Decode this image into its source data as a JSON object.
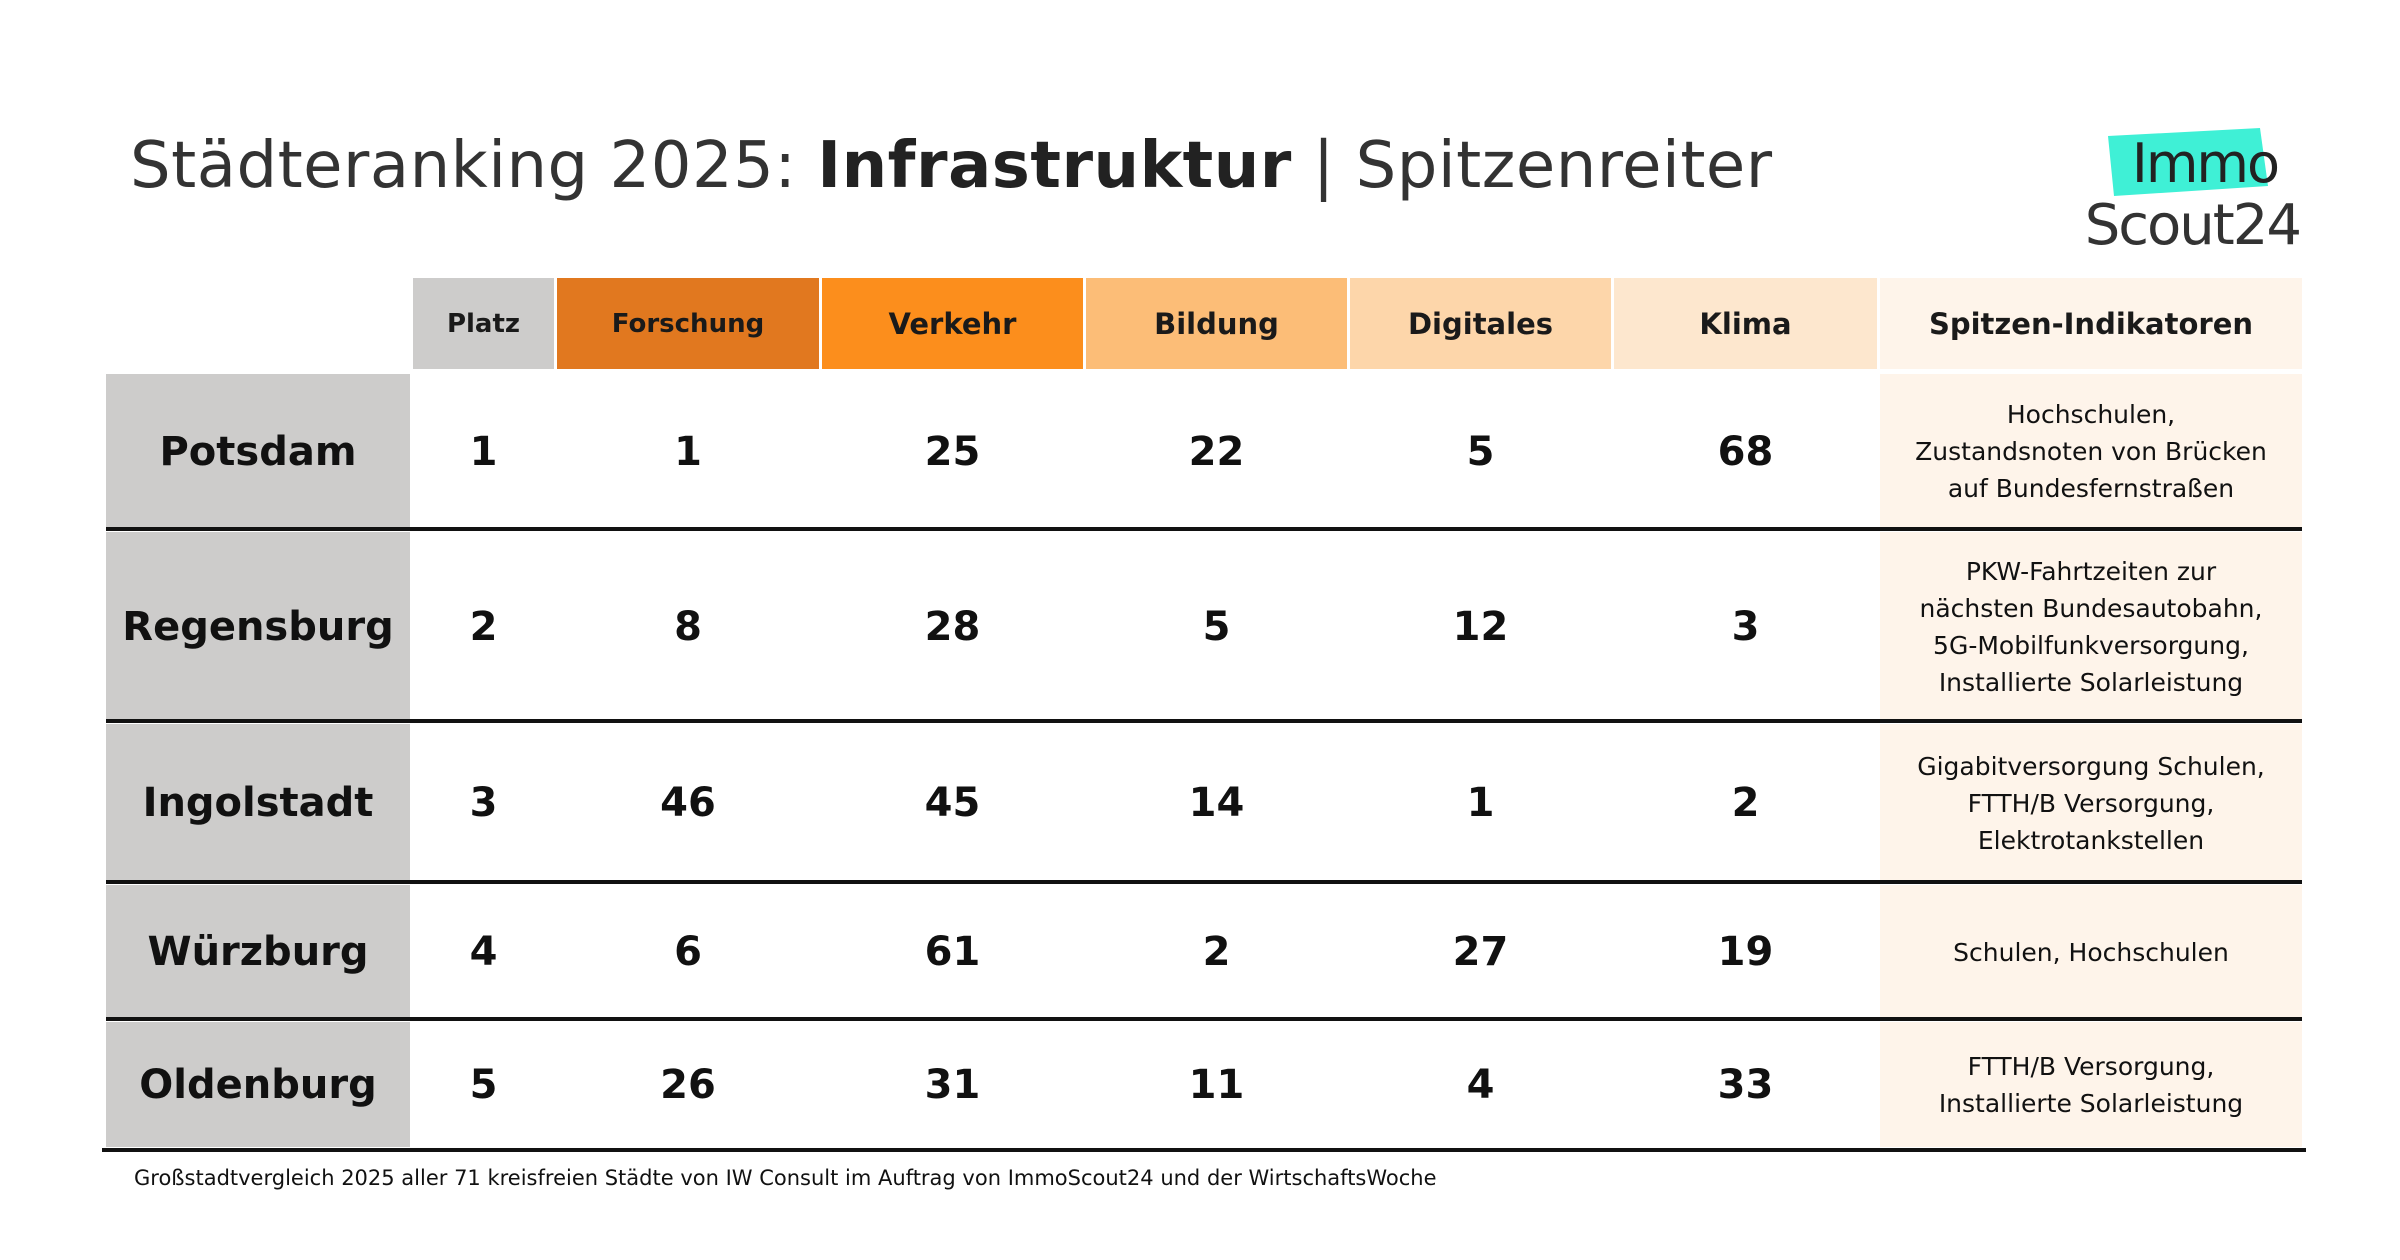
{
  "title": {
    "prefix": "Städteranking 2025: ",
    "bold": "Infrastruktur",
    "suffix": " | Spitzenreiter"
  },
  "logo": {
    "line1": "Immo",
    "line2": "Scout24",
    "accent_color": "#3ff0d6"
  },
  "table": {
    "columns": [
      {
        "key": "platz",
        "label": "Platz",
        "color": "#cdcccb"
      },
      {
        "key": "forschung",
        "label": "Forschung",
        "color": "#e1781f"
      },
      {
        "key": "verkehr",
        "label": "Verkehr",
        "color": "#fc8e1c"
      },
      {
        "key": "bildung",
        "label": "Bildung",
        "color": "#fcbd77"
      },
      {
        "key": "digitales",
        "label": "Digitales",
        "color": "#fdd6aa"
      },
      {
        "key": "klima",
        "label": "Klima",
        "color": "#fde7ce"
      },
      {
        "key": "spitzen",
        "label": "Spitzen-Indikatoren",
        "color": "#fef4ea"
      }
    ],
    "rows": [
      {
        "city": "Potsdam",
        "platz": "1",
        "forschung": "1",
        "verkehr": "25",
        "bildung": "22",
        "digitales": "5",
        "klima": "68",
        "spitzen": "Hochschulen,\nZustandsnoten von Brücken\nauf Bundesfernstraßen"
      },
      {
        "city": "Regensburg",
        "platz": "2",
        "forschung": "8",
        "verkehr": "28",
        "bildung": "5",
        "digitales": "12",
        "klima": "3",
        "spitzen": "PKW-Fahrtzeiten zur\nnächsten Bundesautobahn,\n5G-Mobilfunkversorgung,\nInstallierte Solarleistung"
      },
      {
        "city": "Ingolstadt",
        "platz": "3",
        "forschung": "46",
        "verkehr": "45",
        "bildung": "14",
        "digitales": "1",
        "klima": "2",
        "spitzen": "Gigabitversorgung Schulen,\nFTTH/B Versorgung,\nElektrotankstellen"
      },
      {
        "city": "Würzburg",
        "platz": "4",
        "forschung": "6",
        "verkehr": "61",
        "bildung": "2",
        "digitales": "27",
        "klima": "19",
        "spitzen": "Schulen, Hochschulen"
      },
      {
        "city": "Oldenburg",
        "platz": "5",
        "forschung": "26",
        "verkehr": "31",
        "bildung": "11",
        "digitales": "4",
        "klima": "33",
        "spitzen": "FTTH/B Versorgung,\nInstallierte Solarleistung"
      }
    ]
  },
  "footnote": "Großstadtvergleich 2025 aller 71 kreisfreien Städte von IW Consult im Auftrag von ImmoScout24 und der WirtschaftsWoche",
  "chart_data": {
    "type": "table",
    "title": "Städteranking 2025: Infrastruktur | Spitzenreiter",
    "columns": [
      "Platz",
      "Forschung",
      "Verkehr",
      "Bildung",
      "Digitales",
      "Klima",
      "Spitzen-Indikatoren"
    ],
    "rows": [
      {
        "city": "Potsdam",
        "values": [
          1,
          1,
          25,
          22,
          5,
          68
        ],
        "indicators": "Hochschulen, Zustandsnoten von Brücken auf Bundesfernstraßen"
      },
      {
        "city": "Regensburg",
        "values": [
          2,
          8,
          28,
          5,
          12,
          3
        ],
        "indicators": "PKW-Fahrtzeiten zur nächsten Bundesautobahn, 5G-Mobilfunkversorgung, Installierte Solarleistung"
      },
      {
        "city": "Ingolstadt",
        "values": [
          3,
          46,
          45,
          14,
          1,
          2
        ],
        "indicators": "Gigabitversorgung Schulen, FTTH/B Versorgung, Elektrotankstellen"
      },
      {
        "city": "Würzburg",
        "values": [
          4,
          6,
          61,
          2,
          27,
          19
        ],
        "indicators": "Schulen, Hochschulen"
      },
      {
        "city": "Oldenburg",
        "values": [
          5,
          26,
          31,
          11,
          4,
          33
        ],
        "indicators": "FTTH/B Versorgung, Installierte Solarleistung"
      }
    ]
  }
}
